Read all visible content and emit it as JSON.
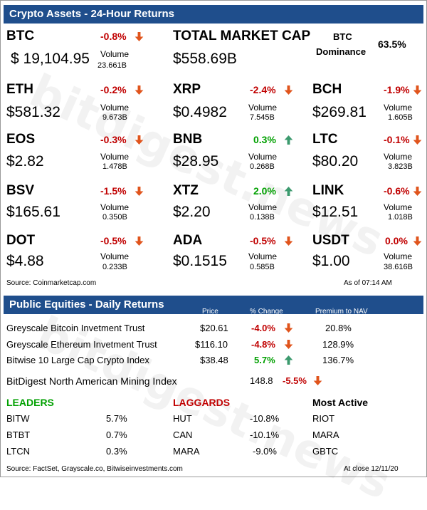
{
  "crypto": {
    "title": "Crypto Assets - 24-Hour Returns",
    "volume_label": "Volume",
    "assets": [
      {
        "ticker": "BTC",
        "change": "-0.8%",
        "dir": "down",
        "price": "$ 19,104.95",
        "volume": "23.661B"
      },
      {
        "ticker": "ETH",
        "change": "-0.2%",
        "dir": "down",
        "price": "$581.32",
        "volume": "9.673B"
      },
      {
        "ticker": "XRP",
        "change": "-2.4%",
        "dir": "down",
        "price": "$0.4982",
        "volume": "7.545B"
      },
      {
        "ticker": "BCH",
        "change": "-1.9%",
        "dir": "down",
        "price": "$269.81",
        "volume": "1.605B"
      },
      {
        "ticker": "EOS",
        "change": "-0.3%",
        "dir": "down",
        "price": "$2.82",
        "volume": "1.478B"
      },
      {
        "ticker": "BNB",
        "change": "0.3%",
        "dir": "up",
        "price": "$28.95",
        "volume": "0.268B"
      },
      {
        "ticker": "LTC",
        "change": "-0.1%",
        "dir": "down",
        "price": "$80.20",
        "volume": "3.823B"
      },
      {
        "ticker": "BSV",
        "change": "-1.5%",
        "dir": "down",
        "price": "$165.61",
        "volume": "0.350B"
      },
      {
        "ticker": "XTZ",
        "change": "2.0%",
        "dir": "up",
        "price": "$2.20",
        "volume": "0.138B"
      },
      {
        "ticker": "LINK",
        "change": "-0.6%",
        "dir": "down",
        "price": "$12.51",
        "volume": "1.018B"
      },
      {
        "ticker": "DOT",
        "change": "-0.5%",
        "dir": "down",
        "price": "$4.88",
        "volume": "0.233B"
      },
      {
        "ticker": "ADA",
        "change": "-0.5%",
        "dir": "down",
        "price": "$0.1515",
        "volume": "0.585B"
      },
      {
        "ticker": "USDT",
        "change": "0.0%",
        "dir": "down",
        "price": "$1.00",
        "volume": "38.616B"
      }
    ],
    "market_cap_label": "TOTAL MARKET CAP",
    "market_cap_value": "$558.69B",
    "btc_dominance_label_1": "BTC",
    "btc_dominance_label_2": "Dominance",
    "btc_dominance_value": "63.5%",
    "source": "Source: Coinmarketcap.com",
    "as_of": "As of 07:14 AM"
  },
  "equities": {
    "title": "Public Equities - Daily Returns",
    "col_price": "Price",
    "col_change": "% Change",
    "col_premium": "Premium to NAV",
    "rows": [
      {
        "name": "Greyscale Bitcoin Invetment Trust",
        "price": "$20.61",
        "change": "-4.0%",
        "dir": "down",
        "premium": "20.8%"
      },
      {
        "name": "Greyscale Ethereum Invetment Trust",
        "price": "$116.10",
        "change": "-4.8%",
        "dir": "down",
        "premium": "128.9%"
      },
      {
        "name": "Bitwise 10 Large Cap Crypto Index",
        "price": "$38.48",
        "change": "5.7%",
        "dir": "up",
        "premium": "136.7%"
      }
    ],
    "mining_index": {
      "name": "BitDigest North American Mining Index",
      "value": "148.8",
      "change": "-5.5%",
      "dir": "down"
    },
    "leaders_title": "LEADERS",
    "laggards_title": "LAGGARDS",
    "active_title": "Most Active",
    "leaders": [
      {
        "ticker": "BITW",
        "change": "5.7%"
      },
      {
        "ticker": "BTBT",
        "change": "0.7%"
      },
      {
        "ticker": "LTCN",
        "change": "0.3%"
      }
    ],
    "laggards": [
      {
        "ticker": "HUT",
        "change": "-10.8%"
      },
      {
        "ticker": "CAN",
        "change": "-10.1%"
      },
      {
        "ticker": "MARA",
        "change": "-9.0%"
      }
    ],
    "active": [
      "RIOT",
      "MARA",
      "GBTC"
    ],
    "source": "Source: FactSet, Grayscale.co, Bitwiseinvestments.com",
    "as_of": "At close  12/11/20"
  },
  "watermark": "bitdigest.news",
  "colors": {
    "header": "#1f4e8c",
    "negative": "#c00000",
    "positive": "#00a000",
    "down_arrow": "#e0541c",
    "up_arrow": "#3c9a6e"
  }
}
